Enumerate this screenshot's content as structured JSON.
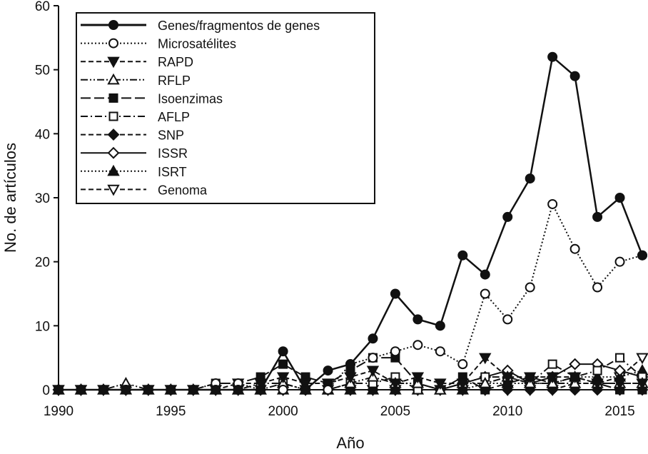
{
  "chart_data": {
    "type": "line",
    "title": "",
    "xlabel": "Año",
    "ylabel": "No. de artículos",
    "xlim": [
      1990,
      2016
    ],
    "ylim": [
      0,
      60
    ],
    "x_ticks": [
      1990,
      1995,
      2000,
      2005,
      2010,
      2015
    ],
    "y_ticks": [
      0,
      10,
      20,
      30,
      40,
      50,
      60
    ],
    "grid": false,
    "legend_position": "top-left",
    "x": [
      1990,
      1991,
      1992,
      1993,
      1994,
      1995,
      1996,
      1997,
      1998,
      1999,
      2000,
      2001,
      2002,
      2003,
      2004,
      2005,
      2006,
      2007,
      2008,
      2009,
      2010,
      2011,
      2012,
      2013,
      2014,
      2015,
      2016
    ],
    "series": [
      {
        "name": "Genes/fragmentos de genes",
        "marker": "circle-filled",
        "line": "solid",
        "values": [
          0,
          0,
          0,
          0,
          0,
          0,
          0,
          0,
          0,
          0,
          6,
          0,
          3,
          4,
          8,
          15,
          11,
          10,
          21,
          18,
          27,
          33,
          52,
          49,
          27,
          30,
          21
        ]
      },
      {
        "name": "Microsatélites",
        "marker": "circle-open",
        "line": "dotted",
        "values": [
          0,
          0,
          0,
          0,
          0,
          0,
          0,
          1,
          1,
          0,
          0,
          0,
          0,
          4,
          5,
          6,
          7,
          6,
          4,
          15,
          11,
          16,
          29,
          22,
          16,
          20,
          21
        ]
      },
      {
        "name": "RAPD",
        "marker": "triangle-down-filled",
        "line": "dashed",
        "values": [
          0,
          0,
          0,
          0,
          0,
          0,
          0,
          0,
          1,
          1,
          2,
          1,
          1,
          2,
          3,
          1,
          2,
          1,
          1,
          5,
          2,
          2,
          2,
          2,
          1,
          1,
          1
        ]
      },
      {
        "name": "RFLP",
        "marker": "triangle-up-open",
        "line": "dashdotdot",
        "values": [
          0,
          0,
          0,
          1,
          0,
          0,
          0,
          0,
          0,
          0,
          1,
          0,
          0,
          1,
          2,
          1,
          1,
          0,
          1,
          1,
          2,
          1,
          1,
          1,
          1,
          1,
          1
        ]
      },
      {
        "name": "Isoenzimas",
        "marker": "square-filled",
        "line": "longdash",
        "values": [
          0,
          0,
          0,
          0,
          0,
          0,
          0,
          1,
          1,
          2,
          4,
          2,
          1,
          3,
          5,
          5,
          1,
          0,
          2,
          0,
          1,
          2,
          1,
          2,
          1,
          0,
          0
        ]
      },
      {
        "name": "AFLP",
        "marker": "square-open",
        "line": "dashdot",
        "values": [
          0,
          0,
          0,
          0,
          0,
          0,
          0,
          0,
          0,
          1,
          1,
          0,
          0,
          1,
          1,
          2,
          0,
          0,
          1,
          2,
          2,
          1,
          4,
          2,
          3,
          5,
          2
        ]
      },
      {
        "name": "SNP",
        "marker": "diamond-filled",
        "line": "dashed",
        "values": [
          0,
          0,
          0,
          0,
          0,
          0,
          0,
          0,
          0,
          0,
          0,
          0,
          0,
          0,
          0,
          0,
          0,
          0,
          0,
          0,
          0,
          0,
          0,
          0,
          0,
          0,
          0
        ]
      },
      {
        "name": "ISSR",
        "marker": "diamond-open",
        "line": "solid",
        "values": [
          0,
          0,
          0,
          0,
          0,
          0,
          0,
          0,
          0,
          0,
          0,
          0,
          0,
          0,
          0,
          0,
          0,
          0,
          1,
          2,
          3,
          1,
          2,
          4,
          4,
          3,
          2
        ]
      },
      {
        "name": "ISRT",
        "marker": "triangle-up-filled",
        "line": "dotted",
        "values": [
          0,
          0,
          0,
          0,
          0,
          0,
          0,
          0,
          0,
          0,
          0,
          0,
          0,
          0,
          0,
          0,
          0,
          0,
          0,
          1,
          1,
          1,
          1,
          2,
          2,
          2,
          3
        ]
      },
      {
        "name": "Genoma",
        "marker": "triangle-down-open",
        "line": "dashed",
        "values": [
          0,
          0,
          0,
          0,
          0,
          0,
          0,
          0,
          0,
          0,
          0,
          0,
          0,
          0,
          0,
          0,
          0,
          0,
          0,
          0,
          0,
          0,
          0,
          1,
          1,
          2,
          5
        ]
      }
    ]
  }
}
